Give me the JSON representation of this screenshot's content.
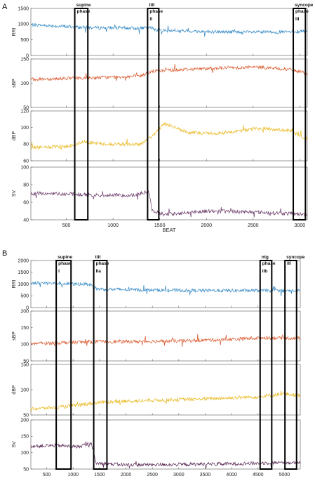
{
  "chart_data": [
    {
      "panel": "A",
      "type": "line",
      "xlabel": "BEAT",
      "xlim": [
        120,
        3080
      ],
      "xticks": [
        500,
        1000,
        1500,
        2000,
        2500,
        3000
      ],
      "subplots": [
        {
          "ylabel": "RRI",
          "ylim": [
            0,
            1500
          ],
          "yticks": [
            0,
            500,
            1000,
            1500
          ],
          "color": "#2f86c4",
          "series": [
            {
              "x": 120,
              "y": 980
            },
            {
              "x": 400,
              "y": 940
            },
            {
              "x": 700,
              "y": 890
            },
            {
              "x": 1000,
              "y": 880
            },
            {
              "x": 1250,
              "y": 870
            },
            {
              "x": 1400,
              "y": 880
            },
            {
              "x": 1500,
              "y": 800
            },
            {
              "x": 2000,
              "y": 760
            },
            {
              "x": 2500,
              "y": 740
            },
            {
              "x": 2900,
              "y": 750
            },
            {
              "x": 3080,
              "y": 780
            }
          ]
        },
        {
          "ylabel": "sBP",
          "ylim": [
            50,
            150
          ],
          "yticks": [
            50,
            100,
            150
          ],
          "color": "#d9562a",
          "series": [
            {
              "x": 120,
              "y": 108
            },
            {
              "x": 500,
              "y": 110
            },
            {
              "x": 900,
              "y": 112
            },
            {
              "x": 1300,
              "y": 115
            },
            {
              "x": 1420,
              "y": 125
            },
            {
              "x": 1700,
              "y": 128
            },
            {
              "x": 2200,
              "y": 132
            },
            {
              "x": 2600,
              "y": 133
            },
            {
              "x": 2900,
              "y": 128
            },
            {
              "x": 3080,
              "y": 120
            }
          ]
        },
        {
          "ylabel": "dBP",
          "ylim": [
            60,
            120
          ],
          "yticks": [
            60,
            80,
            100,
            120
          ],
          "color": "#e8b820",
          "series": [
            {
              "x": 120,
              "y": 76
            },
            {
              "x": 500,
              "y": 77
            },
            {
              "x": 700,
              "y": 83
            },
            {
              "x": 900,
              "y": 80
            },
            {
              "x": 1300,
              "y": 80
            },
            {
              "x": 1400,
              "y": 88
            },
            {
              "x": 1550,
              "y": 105
            },
            {
              "x": 1800,
              "y": 94
            },
            {
              "x": 2100,
              "y": 93
            },
            {
              "x": 2600,
              "y": 99
            },
            {
              "x": 2900,
              "y": 96
            },
            {
              "x": 3080,
              "y": 85
            }
          ]
        },
        {
          "ylabel": "SV",
          "ylim": [
            40,
            100
          ],
          "yticks": [
            40,
            60,
            80,
            100
          ],
          "color": "#6b3b6a",
          "series": [
            {
              "x": 120,
              "y": 70
            },
            {
              "x": 400,
              "y": 70
            },
            {
              "x": 800,
              "y": 68
            },
            {
              "x": 1200,
              "y": 68
            },
            {
              "x": 1380,
              "y": 72
            },
            {
              "x": 1420,
              "y": 50
            },
            {
              "x": 1550,
              "y": 46
            },
            {
              "x": 2000,
              "y": 50
            },
            {
              "x": 2500,
              "y": 49
            },
            {
              "x": 2900,
              "y": 47
            },
            {
              "x": 3080,
              "y": 46
            }
          ]
        }
      ],
      "phases": [
        {
          "x0": 590,
          "x1": 730,
          "lines": [
            "supine",
            "phase"
          ]
        },
        {
          "x0": 1370,
          "x1": 1490,
          "lines": [
            "tilt",
            "phase",
            "II"
          ]
        },
        {
          "x0": 2930,
          "x1": 3060,
          "lines": [
            "syncope",
            "phase",
            "III"
          ]
        }
      ]
    },
    {
      "panel": "B",
      "type": "line",
      "xlabel": "",
      "xlim": [
        200,
        5300
      ],
      "xticks": [
        500,
        1000,
        1500,
        2000,
        2500,
        3000,
        3500,
        4000,
        4500,
        5000
      ],
      "subplots": [
        {
          "ylabel": "RRI",
          "ylim": [
            0,
            2000
          ],
          "yticks": [
            0,
            500,
            1000,
            1500,
            2000
          ],
          "color": "#2f86c4",
          "series": [
            {
              "x": 200,
              "y": 1050
            },
            {
              "x": 600,
              "y": 1030
            },
            {
              "x": 1000,
              "y": 1000
            },
            {
              "x": 1300,
              "y": 1000
            },
            {
              "x": 1450,
              "y": 790
            },
            {
              "x": 2000,
              "y": 760
            },
            {
              "x": 3000,
              "y": 730
            },
            {
              "x": 4000,
              "y": 720
            },
            {
              "x": 4700,
              "y": 720
            },
            {
              "x": 5300,
              "y": 710
            }
          ]
        },
        {
          "ylabel": "sBP",
          "ylim": [
            50,
            200
          ],
          "yticks": [
            50,
            100,
            150,
            200
          ],
          "color": "#d9562a",
          "series": [
            {
              "x": 200,
              "y": 102
            },
            {
              "x": 800,
              "y": 105
            },
            {
              "x": 1400,
              "y": 108
            },
            {
              "x": 2000,
              "y": 108
            },
            {
              "x": 3000,
              "y": 110
            },
            {
              "x": 4000,
              "y": 115
            },
            {
              "x": 4600,
              "y": 120
            },
            {
              "x": 5300,
              "y": 118
            }
          ]
        },
        {
          "ylabel": "dBP",
          "ylim": [
            50,
            150
          ],
          "yticks": [
            50,
            100,
            150
          ],
          "color": "#e8b820",
          "series": [
            {
              "x": 200,
              "y": 62
            },
            {
              "x": 800,
              "y": 66
            },
            {
              "x": 1500,
              "y": 75
            },
            {
              "x": 2500,
              "y": 79
            },
            {
              "x": 3500,
              "y": 82
            },
            {
              "x": 4500,
              "y": 86
            },
            {
              "x": 5000,
              "y": 92
            },
            {
              "x": 5300,
              "y": 88
            }
          ]
        },
        {
          "ylabel": "SV",
          "ylim": [
            50,
            200
          ],
          "yticks": [
            50,
            100,
            150,
            200
          ],
          "color": "#5a2a55",
          "series": [
            {
              "x": 200,
              "y": 120
            },
            {
              "x": 700,
              "y": 122
            },
            {
              "x": 1100,
              "y": 118
            },
            {
              "x": 1350,
              "y": 130
            },
            {
              "x": 1430,
              "y": 68
            },
            {
              "x": 2000,
              "y": 63
            },
            {
              "x": 3000,
              "y": 64
            },
            {
              "x": 4000,
              "y": 66
            },
            {
              "x": 5000,
              "y": 70
            },
            {
              "x": 5300,
              "y": 68
            }
          ]
        }
      ],
      "phases": [
        {
          "x0": 680,
          "x1": 960,
          "lines": [
            "supine",
            "phase",
            "I"
          ]
        },
        {
          "x0": 1390,
          "x1": 1640,
          "lines": [
            "tilt",
            "phase",
            "IIa"
          ]
        },
        {
          "x0": 4540,
          "x1": 4760,
          "lines": [
            "ntg",
            "phase",
            "IIb"
          ]
        },
        {
          "x0": 5010,
          "x1": 5230,
          "lines": [
            "syncope",
            "III"
          ]
        }
      ]
    }
  ]
}
